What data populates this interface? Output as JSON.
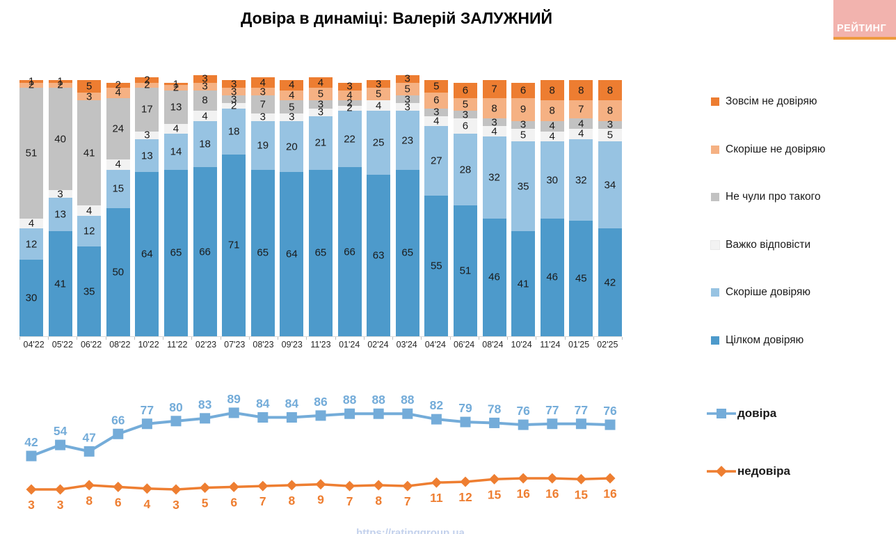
{
  "title": "Довіра в динаміці: Валерій ЗАЛУЖНИЙ",
  "logo": {
    "text": "РЕЙТИНГ"
  },
  "footer": {
    "url": "https://ratinggroup.ua"
  },
  "colors": {
    "fully_trust": "#4D9ACB",
    "rather_trust": "#97C3E2",
    "hard_to_say": "#F2F2F2",
    "not_heard": "#C2C2C2",
    "rather_distrust": "#F5B183",
    "full_distrust": "#ED7D31",
    "trust_line": "#74ACD9",
    "distrust_line": "#EE7E31"
  },
  "chart_data": [
    {
      "type": "bar",
      "stacked": true,
      "title": "Довіра в динаміці: Валерій ЗАЛУЖНИЙ",
      "xlabel": "",
      "ylabel": "",
      "ylim": [
        0,
        105
      ],
      "grid": false,
      "legend_position": "right",
      "categories": [
        "04'22",
        "05'22",
        "06'22",
        "08'22",
        "10'22",
        "11'22",
        "02'23",
        "07'23",
        "08'23",
        "09'23",
        "11'23",
        "01'24",
        "02'24",
        "03'24",
        "04'24",
        "06'24",
        "08'24",
        "10'24",
        "11'24",
        "01'25",
        "02'25"
      ],
      "series": [
        {
          "name": "Цілком довіряю",
          "color_key": "fully_trust",
          "values": [
            30,
            41,
            35,
            50,
            64,
            65,
            66,
            71,
            65,
            64,
            65,
            66,
            63,
            65,
            55,
            51,
            46,
            41,
            46,
            45,
            42
          ]
        },
        {
          "name": "Скоріше довіряю",
          "color_key": "rather_trust",
          "values": [
            12,
            13,
            12,
            15,
            13,
            14,
            18,
            18,
            19,
            20,
            21,
            22,
            25,
            23,
            27,
            28,
            32,
            35,
            30,
            32,
            34
          ]
        },
        {
          "name": "Важко відповісти",
          "color_key": "hard_to_say",
          "values": [
            4,
            3,
            4,
            4,
            3,
            4,
            4,
            2,
            3,
            3,
            3,
            2,
            4,
            3,
            4,
            6,
            4,
            5,
            4,
            4,
            5
          ]
        },
        {
          "name": "Не чули про такого",
          "color_key": "not_heard",
          "values": [
            51,
            40,
            41,
            24,
            17,
            13,
            8,
            3,
            7,
            5,
            3,
            2,
            null,
            3,
            3,
            3,
            3,
            3,
            4,
            4,
            3
          ]
        },
        {
          "name": "Скоріше не довіряю",
          "color_key": "rather_distrust",
          "values": [
            2,
            2,
            3,
            4,
            2,
            2,
            3,
            3,
            3,
            4,
            5,
            4,
            5,
            5,
            6,
            5,
            8,
            9,
            8,
            7,
            8
          ]
        },
        {
          "name": "Зовсім не довіряю",
          "color_key": "full_distrust",
          "values": [
            1,
            1,
            5,
            2,
            2,
            1,
            3,
            3,
            4,
            4,
            4,
            3,
            3,
            3,
            5,
            6,
            7,
            6,
            8,
            8,
            8
          ]
        }
      ],
      "legend_top_to_bottom": [
        "full_distrust",
        "rather_distrust",
        "not_heard",
        "hard_to_say",
        "rather_trust",
        "fully_trust"
      ]
    },
    {
      "type": "line",
      "x": [
        "04'22",
        "05'22",
        "06'22",
        "08'22",
        "10'22",
        "11'22",
        "02'23",
        "07'23",
        "08'23",
        "09'23",
        "11'23",
        "01'24",
        "02'24",
        "03'24",
        "04'24",
        "06'24",
        "08'24",
        "10'24",
        "11'24",
        "01'25",
        "02'25"
      ],
      "series": [
        {
          "name": "довіра",
          "marker": "square",
          "color_key": "trust_line",
          "values": [
            42,
            54,
            47,
            66,
            77,
            80,
            83,
            89,
            84,
            84,
            86,
            88,
            88,
            88,
            82,
            79,
            78,
            76,
            77,
            77,
            76
          ]
        },
        {
          "name": "недовіра",
          "marker": "diamond",
          "color_key": "distrust_line",
          "values": [
            3,
            3,
            8,
            6,
            4,
            3,
            5,
            6,
            7,
            8,
            9,
            7,
            8,
            7,
            11,
            12,
            15,
            16,
            16,
            15,
            16
          ]
        }
      ],
      "grid": false,
      "legend_position": "right"
    }
  ]
}
